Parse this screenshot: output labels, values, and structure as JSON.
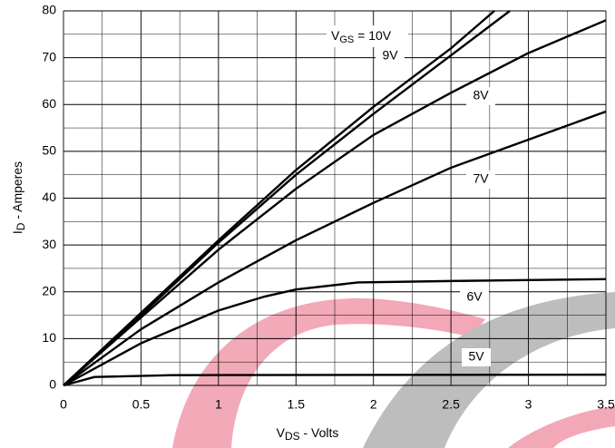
{
  "chart_data": {
    "type": "line",
    "x_label": {
      "main": "V",
      "sub": "DS",
      "rest": " - Volts"
    },
    "y_label": {
      "main": "I",
      "sub": "D",
      "rest": " - Amperes"
    },
    "annotation": {
      "main": "V",
      "sub": "GS",
      "rest": " = 10V"
    },
    "xlim": [
      0,
      3.5
    ],
    "ylim": [
      0,
      80
    ],
    "xticks": [
      0,
      0.5,
      1,
      1.5,
      2,
      2.5,
      3,
      3.5
    ],
    "yticks": [
      0,
      10,
      20,
      30,
      40,
      50,
      60,
      70,
      80
    ],
    "minor_xticks": [
      0.25,
      0.75,
      1.25,
      1.75,
      2.25,
      2.75,
      3.25
    ],
    "minor_yticks": [
      5,
      15,
      25,
      35,
      45,
      55,
      65,
      75
    ],
    "grid": true,
    "series": [
      {
        "name": null,
        "color": "#000000",
        "x": [
          0,
          0.5,
          1,
          1.5,
          2,
          2.5,
          2.78
        ],
        "values": [
          0,
          15.5,
          31,
          46,
          59.5,
          72,
          80
        ]
      },
      {
        "name": "9V",
        "color": "#000000",
        "x": [
          0,
          0.5,
          1,
          1.5,
          2,
          2.5,
          2.88
        ],
        "values": [
          0,
          15,
          30.5,
          45,
          58,
          70.5,
          80
        ]
      },
      {
        "name": "8V",
        "color": "#000000",
        "x": [
          0,
          0.5,
          1,
          1.5,
          2,
          2.5,
          3,
          3.5
        ],
        "values": [
          0,
          14.5,
          29,
          42,
          53.5,
          62.5,
          71,
          78
        ]
      },
      {
        "name": "7V",
        "color": "#000000",
        "x": [
          0,
          0.5,
          1,
          1.5,
          2,
          2.5,
          3,
          3.5
        ],
        "values": [
          0,
          12,
          22,
          31,
          39,
          46.5,
          52.5,
          58.5
        ]
      },
      {
        "name": "6V",
        "color": "#000000",
        "x": [
          0,
          0.5,
          1,
          1.3,
          1.5,
          1.9,
          2.5,
          3,
          3.5
        ],
        "values": [
          0,
          9,
          16,
          19,
          20.5,
          22,
          22.3,
          22.5,
          22.7
        ]
      },
      {
        "name": "5V",
        "color": "#000000",
        "x": [
          0,
          0.2,
          0.7,
          3.5
        ],
        "values": [
          0,
          1.8,
          2.2,
          2.3
        ]
      }
    ]
  }
}
